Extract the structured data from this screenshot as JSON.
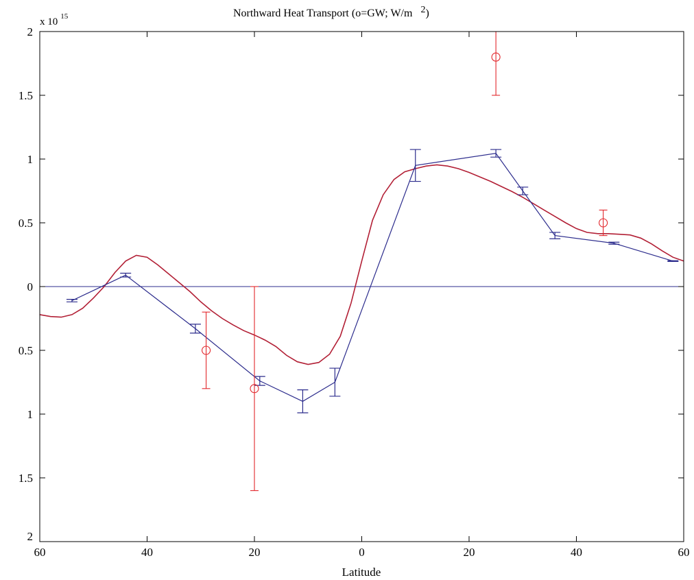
{
  "chart_data": {
    "type": "line",
    "title": "Northward Heat Transport (o=GW; W/m",
    "title_superscript": "2",
    "title_close": ")",
    "xlabel": "Latitude",
    "ylabel": "",
    "y_multiplier_prefix": "x 10",
    "y_multiplier_exponent": "15",
    "xlim": [
      -60,
      60
    ],
    "ylim": [
      -2,
      2
    ],
    "x_ticks": [
      -60,
      -40,
      -20,
      0,
      20,
      40,
      60
    ],
    "x_tick_labels": [
      "60",
      "40",
      "20",
      "0",
      "20",
      "40",
      "60"
    ],
    "y_ticks": [
      -2,
      -1.5,
      -1,
      -0.5,
      0,
      0.5,
      1,
      1.5,
      2
    ],
    "y_tick_labels": [
      "2",
      "1.5",
      "1",
      "0.5",
      "0",
      "0.5",
      "1",
      "1.5",
      "2"
    ],
    "grid": false,
    "zero_line": true,
    "colors": {
      "model": "#b21f35",
      "blue": "#2b2b8c",
      "obs": "#e2262b",
      "axis": "#000000"
    },
    "series": [
      {
        "kind": "curve",
        "color": "#b21f35",
        "x": [
          -60,
          -58,
          -56,
          -54,
          -52,
          -50,
          -48,
          -46,
          -44,
          -42,
          -40,
          -38,
          -36,
          -34,
          -32,
          -30,
          -28,
          -26,
          -24,
          -22,
          -20,
          -18,
          -16,
          -14,
          -12,
          -10,
          -8,
          -6,
          -4,
          -2,
          0,
          2,
          4,
          6,
          8,
          10,
          12,
          14,
          16,
          18,
          20,
          22,
          24,
          26,
          28,
          30,
          32,
          34,
          36,
          38,
          40,
          42,
          44,
          46,
          48,
          50,
          52,
          54,
          56,
          58,
          60
        ],
        "y": [
          -0.22,
          -0.235,
          -0.24,
          -0.22,
          -0.17,
          -0.09,
          0.0,
          0.11,
          0.2,
          0.245,
          0.23,
          0.17,
          0.1,
          0.03,
          -0.04,
          -0.12,
          -0.19,
          -0.25,
          -0.3,
          -0.345,
          -0.38,
          -0.42,
          -0.47,
          -0.54,
          -0.59,
          -0.61,
          -0.595,
          -0.53,
          -0.39,
          -0.13,
          0.2,
          0.52,
          0.72,
          0.84,
          0.9,
          0.925,
          0.945,
          0.955,
          0.945,
          0.925,
          0.895,
          0.86,
          0.825,
          0.785,
          0.745,
          0.7,
          0.65,
          0.6,
          0.55,
          0.5,
          0.455,
          0.425,
          0.415,
          0.415,
          0.41,
          0.405,
          0.38,
          0.335,
          0.28,
          0.23,
          0.2
        ]
      },
      {
        "kind": "line-errorbar",
        "color": "#2b2b8c",
        "points": [
          {
            "x": -54,
            "y": -0.11,
            "err": 0.01
          },
          {
            "x": -44,
            "y": 0.09,
            "err": 0.015
          },
          {
            "x": -31,
            "y": -0.33,
            "err": 0.035
          },
          {
            "x": -19,
            "y": -0.74,
            "err": 0.035
          },
          {
            "x": -11,
            "y": -0.9,
            "err": 0.09
          },
          {
            "x": -5,
            "y": -0.75,
            "err": 0.11
          },
          {
            "x": 10,
            "y": 0.95,
            "err": 0.125
          },
          {
            "x": 25,
            "y": 1.045,
            "err": 0.03
          },
          {
            "x": 30,
            "y": 0.75,
            "err": 0.03
          },
          {
            "x": 36,
            "y": 0.4,
            "err": 0.025
          },
          {
            "x": 47,
            "y": 0.34,
            "err": 0.008
          },
          {
            "x": 58,
            "y": 0.2,
            "err": 0.003
          }
        ]
      },
      {
        "kind": "scatter-errorbar",
        "marker": "circle",
        "color": "#e2262b",
        "points": [
          {
            "x": -29,
            "y": -0.5,
            "err": 0.3
          },
          {
            "x": -20,
            "y": -0.8,
            "err": 0.8
          },
          {
            "x": 25,
            "y": 1.8,
            "err": 0.3
          },
          {
            "x": 45,
            "y": 0.5,
            "err": 0.1
          }
        ]
      }
    ]
  }
}
